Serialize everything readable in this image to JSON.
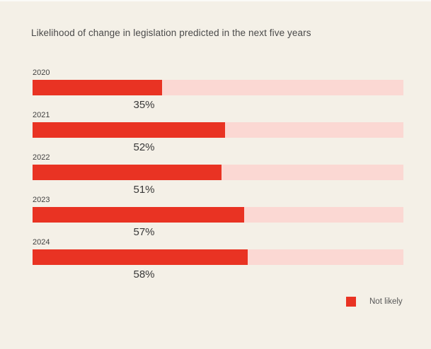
{
  "title": "Likelihood of change in legislation predicted in the next five years",
  "colors": {
    "background": "#f4f0e7",
    "bar_fill": "#e93323",
    "bar_track": "#fbd8d3",
    "title_text": "#4a4a4a",
    "value_text": "#383838",
    "legend_text": "#585858"
  },
  "chart_data": {
    "type": "bar",
    "orientation": "horizontal",
    "title": "Likelihood of change in legislation predicted in the next five years",
    "categories": [
      "2020",
      "2021",
      "2022",
      "2023",
      "2024"
    ],
    "series": [
      {
        "name": "Not likely",
        "values": [
          35,
          52,
          51,
          57,
          58
        ],
        "color": "#e93323"
      }
    ],
    "values": [
      35,
      52,
      51,
      57,
      58
    ],
    "value_labels": [
      "35%",
      "52%",
      "51%",
      "57%",
      "58%"
    ],
    "xlim": [
      0,
      100
    ],
    "grid": false,
    "legend_position": "bottom-right",
    "track_color": "#fbd8d3"
  },
  "legend": {
    "items": [
      {
        "label": "Not likely",
        "color": "#e93323"
      }
    ]
  }
}
